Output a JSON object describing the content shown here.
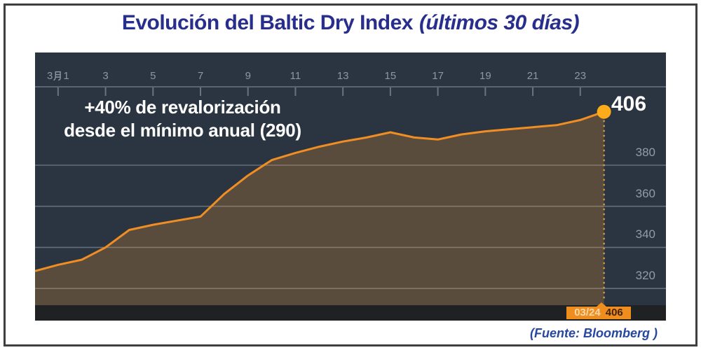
{
  "title": {
    "main": "Evolución del Baltic Dry Index",
    "subtitle": "(últimos 30 días)"
  },
  "annotation": {
    "line1": "+40% de revalorización",
    "line2": "desde el mínimo anual (290)"
  },
  "last_point": {
    "value_label": "406",
    "date_label": "03/24",
    "day": 24,
    "value": 406
  },
  "source": "(Fuente: Bloomberg )",
  "colors": {
    "frame_border": "#3f3f3f",
    "title_blue": "#282e8c",
    "source_blue": "#2847a0",
    "plot_bg": "#2b3541",
    "axis_line": "#5a6472",
    "grid": "rgba(225,232,240,0.32)",
    "tick": "rgba(225,232,240,0.35)",
    "axis_label_gray": "#8d97a3",
    "line_orange": "#f08e23",
    "area_fill": "rgba(244,152,50,0.24)",
    "marker_yellow": "#fcab1b",
    "dotted_orange": "#d6974a",
    "annotation_white": "#ffffff",
    "strip_black": "#1f2123",
    "tag_orange": "#ef8d1f",
    "tag_date_text": "#f6d9ab",
    "tag_value_text": "#40230a"
  },
  "chart_data": {
    "type": "area",
    "title": "Evolución del Baltic Dry Index (últimos 30 días)",
    "xlabel": "",
    "ylabel": "",
    "x_axis": {
      "unit": "day of March",
      "tick_days": [
        1,
        3,
        5,
        7,
        9,
        11,
        13,
        15,
        17,
        19,
        21,
        23
      ],
      "tick_labels": [
        "3月1",
        "3",
        "5",
        "7",
        "9",
        "11",
        "13",
        "15",
        "17",
        "19",
        "21",
        "23"
      ],
      "labels_position": "top"
    },
    "y_axis": {
      "ticks": [
        380,
        360,
        340,
        320
      ],
      "tick_labels": [
        "380",
        "360",
        "340",
        "320"
      ],
      "range_shown": [
        313,
        417
      ],
      "side": "right",
      "grid": true
    },
    "series": [
      {
        "name": "Baltic Dry Index",
        "x_days": [
          0,
          1,
          2,
          3,
          4,
          5,
          6,
          7,
          8,
          9,
          10,
          11,
          12,
          13,
          14,
          15,
          16,
          17,
          18,
          19,
          20,
          21,
          22,
          23,
          24
        ],
        "values": [
          328.5,
          331.5,
          334,
          340,
          348.5,
          351,
          353,
          355,
          366,
          375,
          382.5,
          386,
          389,
          391.5,
          393.5,
          396,
          393.5,
          392.5,
          395,
          396.5,
          397.5,
          398.5,
          399.5,
          402,
          406
        ]
      }
    ],
    "highlight": {
      "day": 24,
      "value": 406,
      "date_label": "03/24",
      "value_label": "406"
    },
    "annotations": [
      "+40% de revalorización desde el mínimo anual (290)"
    ]
  }
}
